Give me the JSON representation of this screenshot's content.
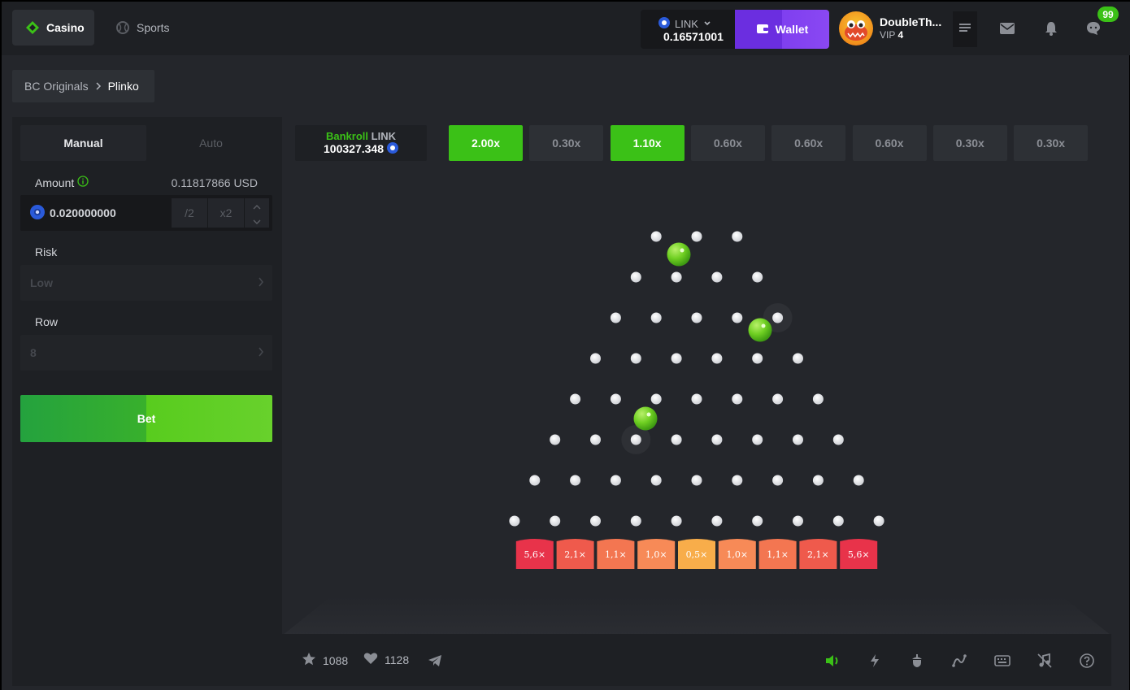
{
  "nav": {
    "casino_label": "Casino",
    "sports_label": "Sports"
  },
  "header": {
    "currency": "LINK",
    "balance": "0.16571001",
    "wallet_label": "Wallet",
    "username": "DoubleTh...",
    "vip_label": "VIP",
    "vip_level": "4",
    "chat_badge": "99"
  },
  "breadcrumb": {
    "parent": "BC Originals",
    "current": "Plinko"
  },
  "bet_panel": {
    "tab_manual": "Manual",
    "tab_auto": "Auto",
    "amount_label": "Amount",
    "amount_usd": "0.11817866 USD",
    "amount_value": "0.020000000",
    "half_label": "/2",
    "double_label": "x2",
    "risk_label": "Risk",
    "risk_value": "Low",
    "row_label": "Row",
    "row_value": "8",
    "bet_label": "Bet"
  },
  "game": {
    "bankroll_word": "Bankroll",
    "bankroll_currency": "LINK",
    "bankroll_amount": "100327.348",
    "history": [
      {
        "label": "2.00x",
        "win": true
      },
      {
        "label": "0.30x",
        "win": false
      },
      {
        "label": "1.10x",
        "win": true
      },
      {
        "label": "0.60x",
        "win": false
      },
      {
        "label": "0.60x",
        "win": false
      },
      {
        "label": "0.60x",
        "win": false
      },
      {
        "label": "0.30x",
        "win": false
      },
      {
        "label": "0.30x",
        "win": false
      }
    ],
    "multipliers": [
      "5,6×",
      "2,1×",
      "1,1×",
      "1,0×",
      "0,5×",
      "1,0×",
      "1,1×",
      "2,1×",
      "5,6×"
    ],
    "multiplier_colors": [
      "#e8334a",
      "#ef5a4c",
      "#f37651",
      "#f78a57",
      "#f8ad4a",
      "#f78a57",
      "#f37651",
      "#ef5a4c",
      "#e8334a"
    ],
    "likes_count": "1088",
    "hearts_count": "1128"
  },
  "colors": {
    "accent_green": "#3bc117",
    "wallet_purple": "#6b2ee0",
    "panel_dark": "#1e2024"
  },
  "icons": {
    "casino": "casino-icon",
    "sports": "sports-icon",
    "wallet": "wallet-icon",
    "mail": "mail-icon",
    "bell": "bell-icon",
    "chat": "chat-icon",
    "star": "star-icon",
    "heart": "heart-icon",
    "share": "telegram-icon",
    "sound": "speaker-icon",
    "turbo": "lightning-icon",
    "fairness": "acorn-icon",
    "stats": "chart-line-icon",
    "hotkeys": "keyboard-icon",
    "music": "music-off-icon",
    "help": "help-icon"
  }
}
